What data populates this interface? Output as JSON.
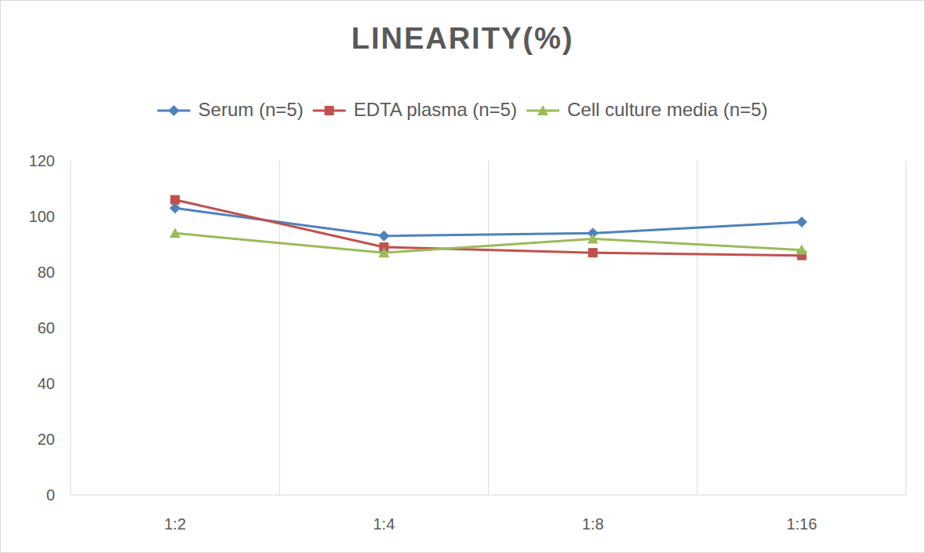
{
  "chart_data": {
    "type": "line",
    "title": "LINEARITY(%)",
    "categories": [
      "1:2",
      "1:4",
      "1:8",
      "1:16"
    ],
    "series": [
      {
        "name": "Serum (n=5)",
        "color": "#4f81bd",
        "marker": "diamond",
        "values": [
          103,
          93,
          94,
          98
        ]
      },
      {
        "name": "EDTA plasma (n=5)",
        "color": "#c0504d",
        "marker": "square",
        "values": [
          106,
          89,
          87,
          86
        ]
      },
      {
        "name": "Cell culture media (n=5)",
        "color": "#9bbb59",
        "marker": "triangle",
        "values": [
          94,
          87,
          92,
          88
        ]
      }
    ],
    "ylim": [
      0,
      120
    ],
    "yticks": [
      0,
      20,
      40,
      60,
      80,
      100,
      120
    ],
    "grid": true,
    "legend": "top"
  }
}
